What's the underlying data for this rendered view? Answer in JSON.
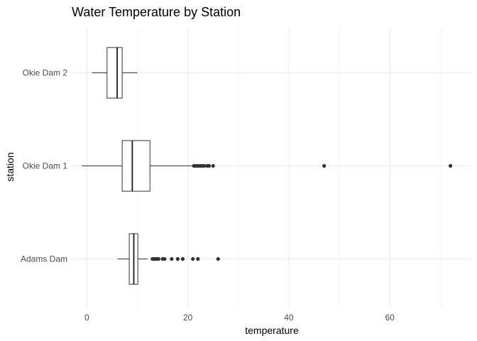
{
  "chart_data": {
    "type": "boxplot",
    "orientation": "horizontal",
    "title": "Water Temperature by Station",
    "xlabel": "temperature",
    "ylabel": "station",
    "xlim": [
      -3,
      76
    ],
    "x_ticks": [
      0,
      20,
      40,
      60
    ],
    "grid": true,
    "categories": [
      "Adams Dam",
      "Okie Dam 1",
      "Okie Dam 2"
    ],
    "boxes": [
      {
        "category": "Adams Dam",
        "whisker_low": 6.1,
        "q1": 8.4,
        "median": 9.3,
        "q3": 10.1,
        "whisker_high": 12.0,
        "outliers": [
          13.0,
          13.3,
          13.6,
          13.9,
          14.2,
          15.0,
          15.4,
          16.8,
          18.0,
          19.0,
          21.0,
          22.0,
          26.0
        ]
      },
      {
        "category": "Okie Dam 1",
        "whisker_low": -1.0,
        "q1": 7.0,
        "median": 9.0,
        "q3": 12.5,
        "whisker_high": 21.0,
        "outliers": [
          21.2,
          21.6,
          22.0,
          22.4,
          22.8,
          23.2,
          23.8,
          24.2,
          25.0,
          47.0,
          72.0
        ]
      },
      {
        "category": "Okie Dam 2",
        "whisker_low": 1.0,
        "q1": 4.0,
        "median": 6.0,
        "q3": 7.0,
        "whisker_high": 10.0,
        "outliers": []
      }
    ]
  }
}
